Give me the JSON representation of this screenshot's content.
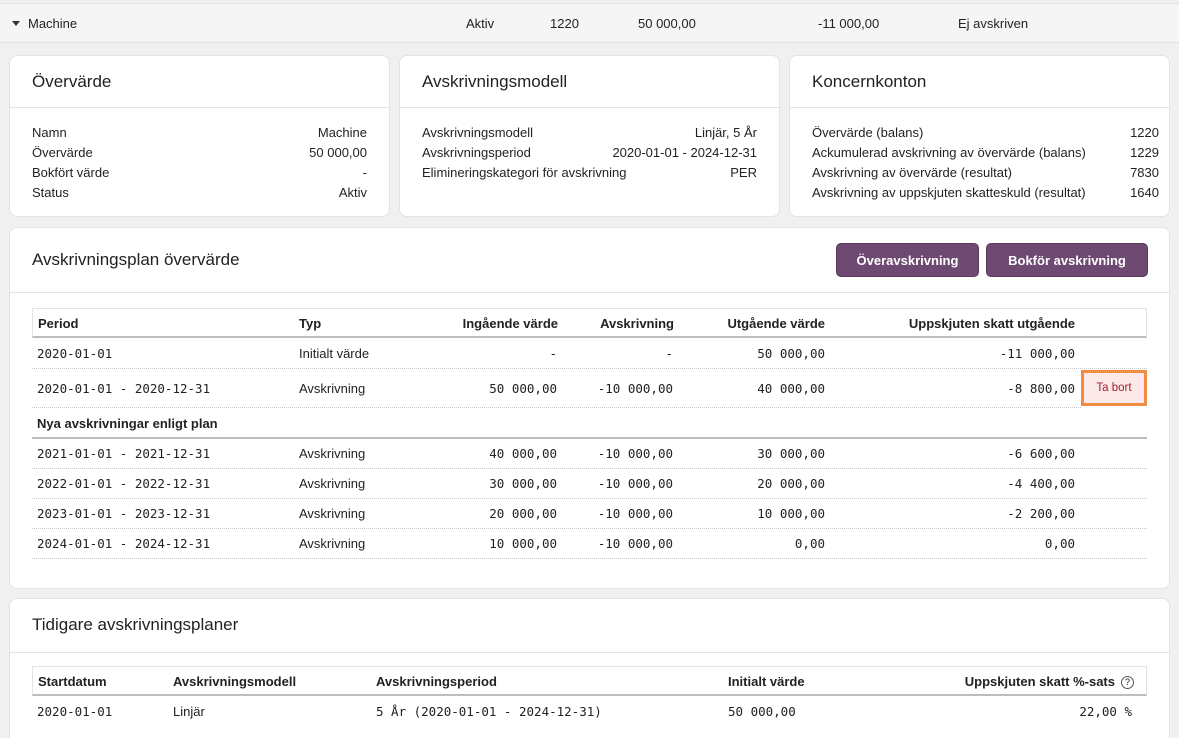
{
  "top_row": {
    "name": "Machine",
    "status": "Aktiv",
    "account": "1220",
    "value": "50 000,00",
    "tax": "-11 000,00",
    "state": "Ej avskriven"
  },
  "overvarde": {
    "title": "Övervärde",
    "rows": [
      {
        "label": "Namn",
        "value": "Machine"
      },
      {
        "label": "Övervärde",
        "value": "50 000,00"
      },
      {
        "label": "Bokfört värde",
        "value": "-"
      },
      {
        "label": "Status",
        "value": "Aktiv"
      }
    ]
  },
  "avskrivningsmodell": {
    "title": "Avskrivningsmodell",
    "rows": [
      {
        "label": "Avskrivningsmodell",
        "value": "Linjär, 5 År"
      },
      {
        "label": "Avskrivningsperiod",
        "value": "2020-01-01 - 2024-12-31"
      },
      {
        "label": "Elimineringskategori för avskrivning",
        "value": "PER"
      }
    ]
  },
  "koncernkonton": {
    "title": "Koncernkonton",
    "rows": [
      {
        "label": "Övervärde (balans)",
        "value": "1220"
      },
      {
        "label": "Ackumulerad avskrivning av övervärde (balans)",
        "value": "1229"
      },
      {
        "label": "Avskrivning av övervärde (resultat)",
        "value": "7830"
      },
      {
        "label": "Avskrivning av uppskjuten skatteskuld (resultat)",
        "value": "1640"
      }
    ]
  },
  "plan": {
    "title": "Avskrivningsplan övervärde",
    "buttons": {
      "overavskrivning": "Överavskrivning",
      "bokfor": "Bokför avskrivning"
    },
    "headers": {
      "period": "Period",
      "typ": "Typ",
      "ingaende": "Ingående värde",
      "avskrivning": "Avskrivning",
      "utgaende": "Utgående värde",
      "skatt": "Uppskjuten skatt utgående"
    },
    "rows": [
      {
        "period": "2020-01-01",
        "typ": "Initialt värde",
        "ingaende": "-",
        "avskrivning": "-",
        "utgaende": "50 000,00",
        "skatt": "-11 000,00"
      },
      {
        "period": "2020-01-01 - 2020-12-31",
        "typ": "Avskrivning",
        "ingaende": "50 000,00",
        "avskrivning": "-10 000,00",
        "utgaende": "40 000,00",
        "skatt": "-8 800,00"
      }
    ],
    "remove_label": "Ta bort",
    "section_label": "Nya avskrivningar enligt plan",
    "future_rows": [
      {
        "period": "2021-01-01 - 2021-12-31",
        "typ": "Avskrivning",
        "ingaende": "40 000,00",
        "avskrivning": "-10 000,00",
        "utgaende": "30 000,00",
        "skatt": "-6 600,00"
      },
      {
        "period": "2022-01-01 - 2022-12-31",
        "typ": "Avskrivning",
        "ingaende": "30 000,00",
        "avskrivning": "-10 000,00",
        "utgaende": "20 000,00",
        "skatt": "-4 400,00"
      },
      {
        "period": "2023-01-01 - 2023-12-31",
        "typ": "Avskrivning",
        "ingaende": "20 000,00",
        "avskrivning": "-10 000,00",
        "utgaende": "10 000,00",
        "skatt": "-2 200,00"
      },
      {
        "period": "2024-01-01 - 2024-12-31",
        "typ": "Avskrivning",
        "ingaende": "10 000,00",
        "avskrivning": "-10 000,00",
        "utgaende": "0,00",
        "skatt": "0,00"
      }
    ]
  },
  "tidigare": {
    "title": "Tidigare avskrivningsplaner",
    "headers": {
      "startdatum": "Startdatum",
      "modell": "Avskrivningsmodell",
      "period": "Avskrivningsperiod",
      "initialt": "Initialt värde",
      "skatt": "Uppskjuten skatt %-sats"
    },
    "help_icon": "?",
    "rows": [
      {
        "startdatum": "2020-01-01",
        "modell": "Linjär",
        "period": "5 År (2020-01-01 - 2024-12-31)",
        "initialt": "50 000,00",
        "skatt": "22,00 %"
      }
    ]
  },
  "colors": {
    "accent": "#6e4a72",
    "highlight": "#f08c44",
    "danger_bg": "#fde8ea",
    "danger_text": "#a0252f"
  }
}
